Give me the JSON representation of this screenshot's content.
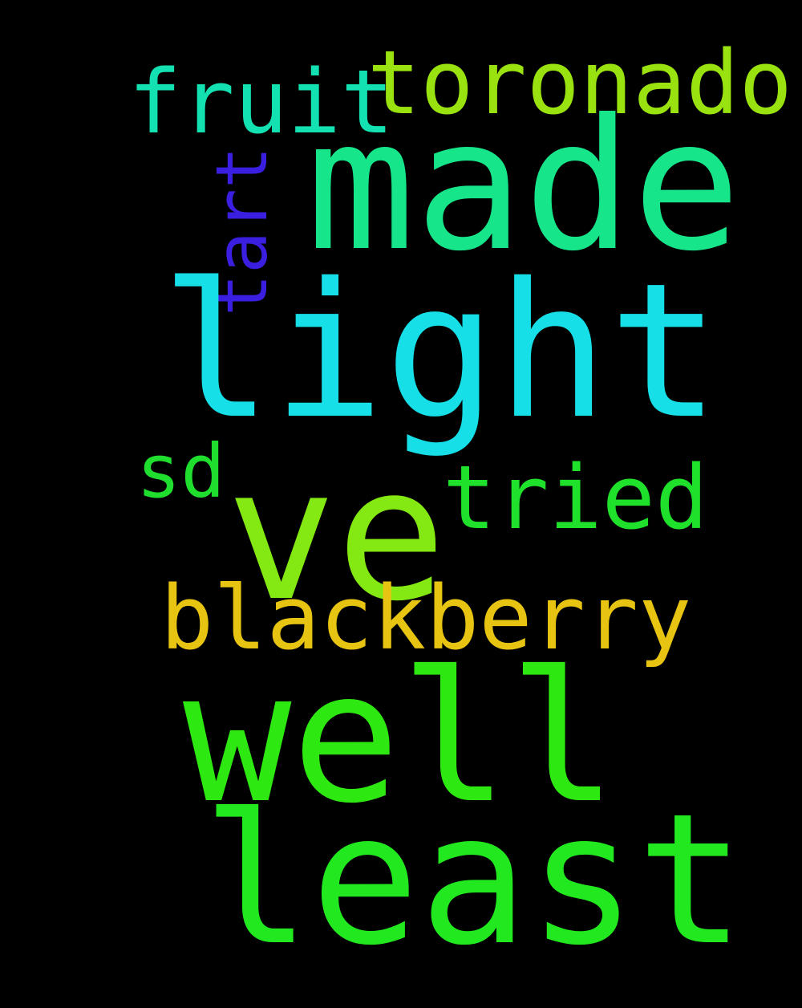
{
  "words": [
    {
      "text": "made",
      "color": "#16E58A"
    },
    {
      "text": "light",
      "color": "#16DFE8"
    },
    {
      "text": "ve",
      "color": "#84E812"
    },
    {
      "text": "well",
      "color": "#2EE812"
    },
    {
      "text": "least",
      "color": "#22E81F"
    },
    {
      "text": "toronado",
      "color": "#9AE20F"
    },
    {
      "text": "fruit",
      "color": "#14E1B2"
    },
    {
      "text": "tart",
      "color": "#3A1FE0"
    },
    {
      "text": "sd",
      "color": "#1FDE2E"
    },
    {
      "text": "tried",
      "color": "#1FE02A"
    },
    {
      "text": "blackberry",
      "color": "#E8C412"
    }
  ]
}
